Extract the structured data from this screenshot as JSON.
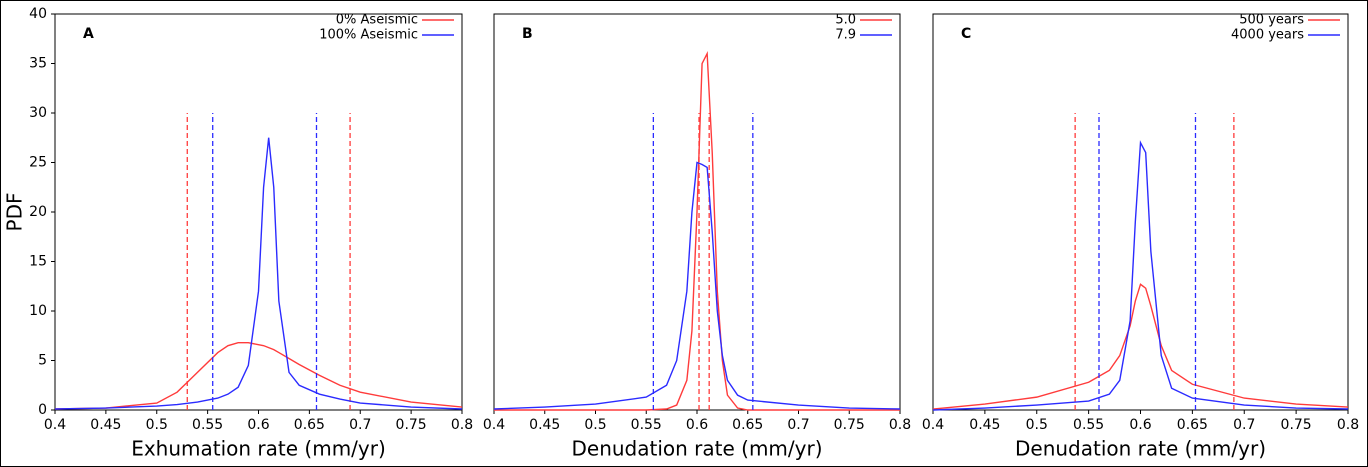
{
  "chart_data": [
    {
      "type": "line",
      "title": "A",
      "ylabel": "PDF",
      "xlabel": "Exhumation rate (mm/yr)",
      "x": [
        0.4,
        0.45,
        0.5,
        0.52,
        0.54,
        0.56,
        0.57,
        0.58,
        0.59,
        0.6,
        0.605,
        0.61,
        0.615,
        0.62,
        0.63,
        0.64,
        0.66,
        0.68,
        0.7,
        0.75,
        0.8
      ],
      "series": [
        {
          "name": "0% Aseismic",
          "color": "#ff3b3b",
          "values": [
            0.1,
            0.2,
            0.7,
            1.8,
            3.8,
            5.8,
            6.5,
            6.8,
            6.8,
            6.6,
            6.5,
            6.3,
            6.1,
            5.8,
            5.2,
            4.6,
            3.5,
            2.5,
            1.8,
            0.8,
            0.3
          ],
          "interval": [
            0.53,
            0.69
          ]
        },
        {
          "name": "100% Aseismic",
          "color": "#2b2bff",
          "values": [
            0.1,
            0.2,
            0.4,
            0.55,
            0.8,
            1.2,
            1.6,
            2.3,
            4.5,
            12,
            22.5,
            27.5,
            22.5,
            11,
            3.8,
            2.5,
            1.6,
            1.1,
            0.7,
            0.3,
            0.1
          ],
          "interval": [
            0.555,
            0.657
          ]
        }
      ],
      "interval_top": 30,
      "xlim": [
        0.4,
        0.8
      ],
      "ylim": [
        0,
        40
      ],
      "xticks": [
        0.4,
        0.45,
        0.5,
        0.55,
        0.6,
        0.65,
        0.7,
        0.75,
        0.8
      ],
      "yticks": [
        0,
        5,
        10,
        15,
        20,
        25,
        30,
        35,
        40
      ]
    },
    {
      "type": "line",
      "title": "B",
      "xlabel": "Denudation rate (mm/yr)",
      "x": [
        0.4,
        0.45,
        0.5,
        0.55,
        0.57,
        0.58,
        0.59,
        0.595,
        0.6,
        0.605,
        0.61,
        0.615,
        0.62,
        0.625,
        0.63,
        0.64,
        0.65,
        0.7,
        0.75,
        0.8
      ],
      "series": [
        {
          "name": "5.0",
          "color": "#ff3b3b",
          "values": [
            0,
            0,
            0,
            0,
            0.1,
            0.5,
            3,
            8,
            20,
            35,
            36,
            26,
            12,
            5,
            1.5,
            0.2,
            0,
            0,
            0,
            0
          ],
          "interval": [
            0.602,
            0.612
          ]
        },
        {
          "name": "7.9",
          "color": "#2b2bff",
          "values": [
            0.1,
            0.3,
            0.6,
            1.3,
            2.5,
            5,
            12,
            20,
            25,
            24.8,
            24.5,
            18,
            10,
            5.5,
            3,
            1.5,
            1,
            0.5,
            0.2,
            0.1
          ],
          "interval": [
            0.557,
            0.655
          ]
        }
      ],
      "interval_top": 30,
      "xlim": [
        0.4,
        0.8
      ],
      "ylim": [
        0,
        40
      ],
      "xticks": [
        0.4,
        0.45,
        0.5,
        0.55,
        0.6,
        0.65,
        0.7,
        0.75,
        0.8
      ]
    },
    {
      "type": "line",
      "title": "C",
      "xlabel": "Denudation rate (mm/yr)",
      "x": [
        0.4,
        0.45,
        0.5,
        0.55,
        0.57,
        0.58,
        0.59,
        0.595,
        0.6,
        0.605,
        0.61,
        0.62,
        0.63,
        0.65,
        0.7,
        0.75,
        0.8
      ],
      "series": [
        {
          "name": "500 years",
          "color": "#ff3b3b",
          "values": [
            0.1,
            0.6,
            1.3,
            2.8,
            4,
            5.5,
            8.5,
            11,
            12.7,
            12.3,
            10.5,
            6.5,
            4,
            2.6,
            1.2,
            0.6,
            0.3
          ],
          "interval": [
            0.537,
            0.69
          ]
        },
        {
          "name": "4000 years",
          "color": "#2b2bff",
          "values": [
            0,
            0.2,
            0.5,
            0.9,
            1.6,
            3,
            9,
            19,
            27,
            26,
            16,
            5.5,
            2.2,
            1.2,
            0.5,
            0.2,
            0.1
          ],
          "interval": [
            0.56,
            0.653
          ]
        }
      ],
      "interval_top": 30,
      "xlim": [
        0.4,
        0.8
      ],
      "ylim": [
        0,
        40
      ],
      "xticks": [
        0.4,
        0.45,
        0.5,
        0.55,
        0.6,
        0.65,
        0.7,
        0.75,
        0.8
      ]
    }
  ]
}
